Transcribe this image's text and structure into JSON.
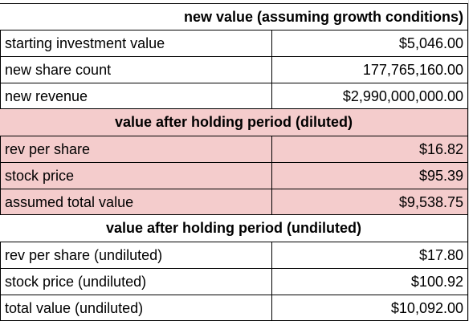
{
  "colors": {
    "highlight": "#f4cccc",
    "border": "#000000",
    "background": "#ffffff"
  },
  "sections": [
    {
      "header": "new value (assuming growth conditions)",
      "highlighted": false,
      "rows": [
        {
          "label": "starting investment value",
          "value": "$5,046.00"
        },
        {
          "label": "new share count",
          "value": "177,765,160.00"
        },
        {
          "label": "new revenue",
          "value": "$2,990,000,000.00"
        }
      ]
    },
    {
      "header": "value after holding period (diluted)",
      "highlighted": true,
      "rows": [
        {
          "label": "rev per share",
          "value": "$16.82"
        },
        {
          "label": "stock price",
          "value": "$95.39"
        },
        {
          "label": "assumed total value",
          "value": "$9,538.75"
        }
      ]
    },
    {
      "header": "value after holding period (undiluted)",
      "highlighted": false,
      "rows": [
        {
          "label": "rev per share (undiluted)",
          "value": "$17.80"
        },
        {
          "label": "stock price (undiluted)",
          "value": "$100.92"
        },
        {
          "label": "total value (undiluted)",
          "value": "$10,092.00"
        }
      ]
    }
  ]
}
